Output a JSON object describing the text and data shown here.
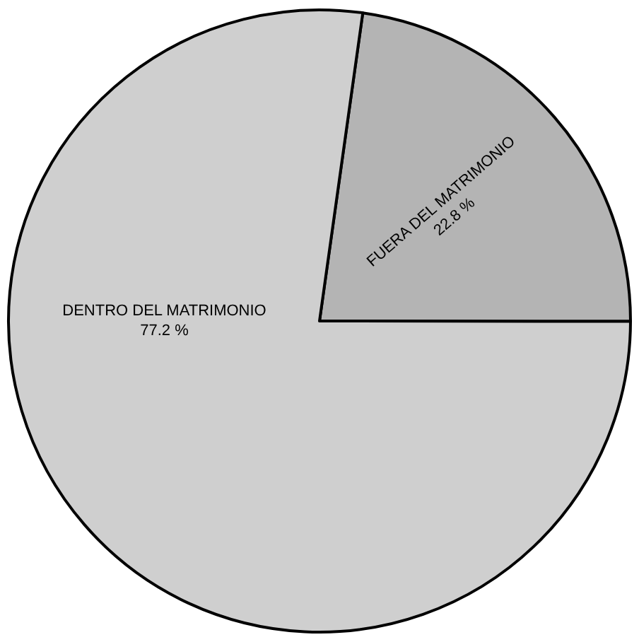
{
  "chart_data": {
    "type": "pie",
    "categories": [
      "FUERA DEL MATRIMONIO",
      "DENTRO DEL MATRIMONIO"
    ],
    "values": [
      22.8,
      77.2
    ],
    "value_labels": [
      "22.8 %",
      "77.2 %"
    ],
    "colors": [
      "#b4b4b4",
      "#cfcfcf"
    ],
    "legend": false
  }
}
